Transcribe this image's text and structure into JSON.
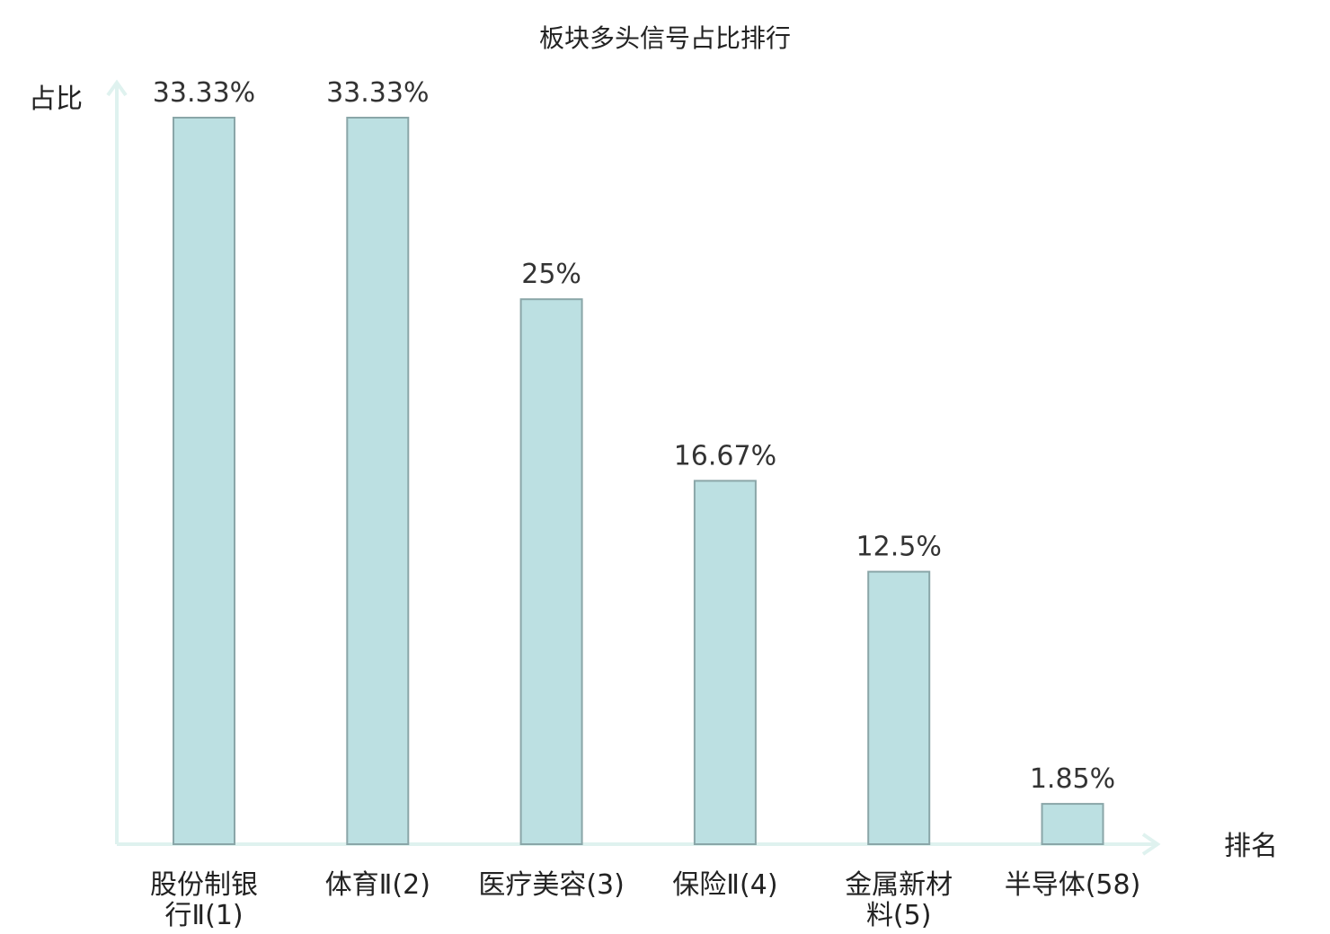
{
  "chart_data": {
    "type": "bar",
    "title": "板块多头信号占比排行",
    "xlabel": "排名",
    "ylabel": "占比",
    "categories": [
      [
        "股份制银",
        "行Ⅱ(1)"
      ],
      [
        "体育Ⅱ(2)"
      ],
      [
        "医疗美容(3)"
      ],
      [
        "保险Ⅱ(4)"
      ],
      [
        "金属新材",
        "料(5)"
      ],
      [
        "半导体(58)"
      ]
    ],
    "values": [
      33.33,
      33.33,
      25,
      16.67,
      12.5,
      1.85
    ],
    "data_labels": [
      "33.33%",
      "33.33%",
      "25%",
      "16.67%",
      "12.5%",
      "1.85%"
    ],
    "highlight_index": 5,
    "ylim": [
      0,
      33.33
    ],
    "grid": false,
    "legend": "none",
    "colors": {
      "bar_fill": "#bce0e2",
      "bar_stroke": "#8aa6a8",
      "axis": "#dff2ef",
      "text": "#222222",
      "value_text": "#333333",
      "highlight_text": "#e02020"
    }
  }
}
